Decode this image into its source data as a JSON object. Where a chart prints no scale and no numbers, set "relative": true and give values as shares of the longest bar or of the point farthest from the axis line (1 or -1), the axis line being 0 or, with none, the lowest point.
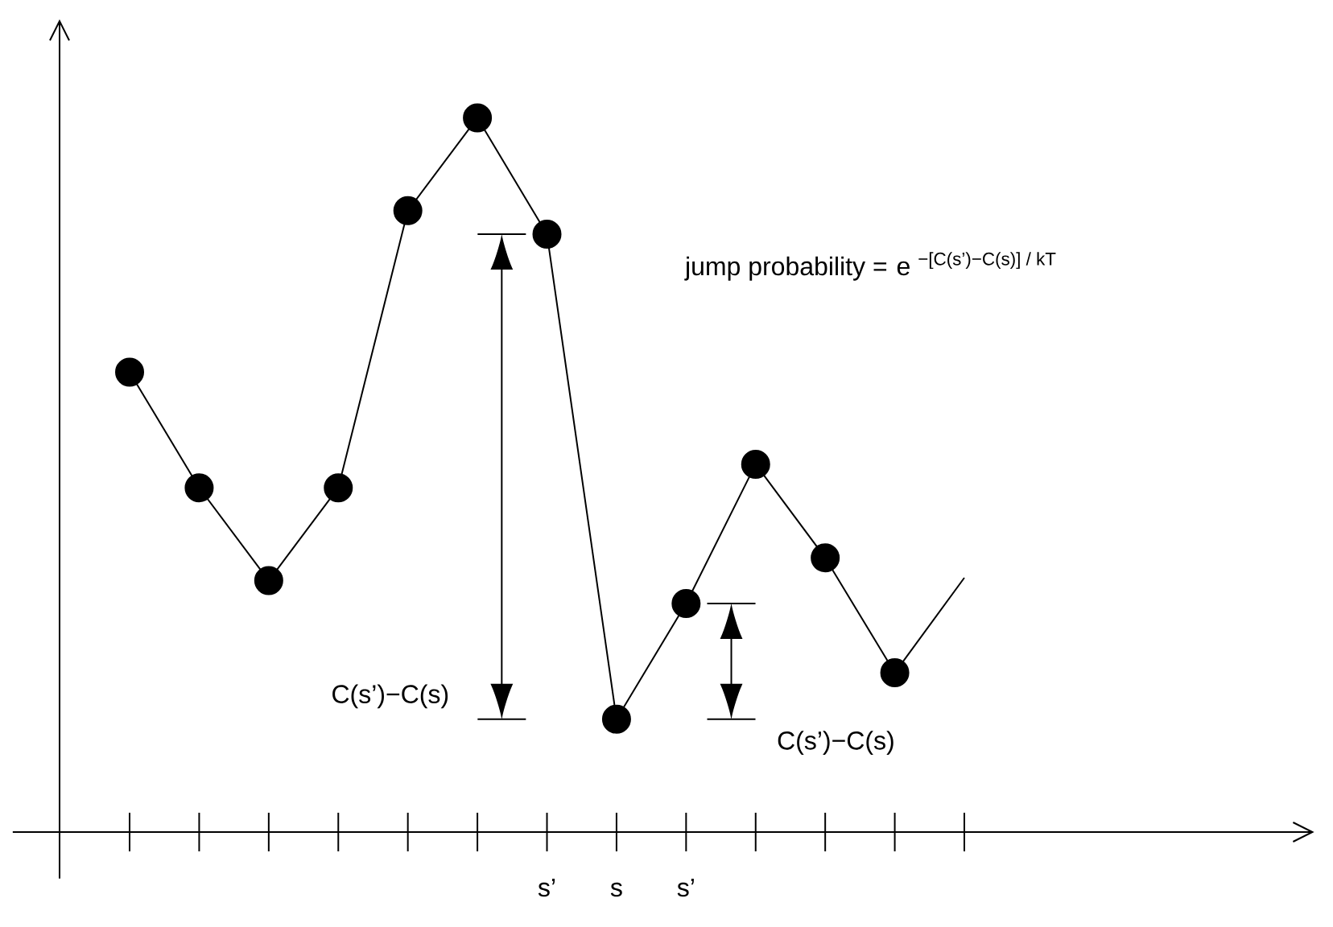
{
  "chart_data": {
    "type": "line",
    "relative": true,
    "categories": [
      null,
      null,
      null,
      null,
      null,
      null,
      "s’",
      "s",
      "s’",
      null,
      null,
      null,
      null
    ],
    "series": [
      {
        "marker": "none",
        "color": "#000000",
        "values": [
          0.644,
          0.482,
          0.352,
          0.482,
          0.87,
          1,
          0.837,
          0.158,
          0.32,
          0.515,
          0.384,
          0.223,
          0.356
        ]
      },
      {
        "type": "scatter",
        "marker": "circle",
        "color": "#000000",
        "values": [
          0.644,
          0.482,
          0.352,
          0.482,
          0.87,
          1,
          0.837,
          0.158,
          0.32,
          0.515,
          0.384,
          0.223,
          null
        ]
      }
    ],
    "annotations": [
      "jump probability =",
      "\\text{e }^{\\text{−[C(s’)−C(s)] / kT}}",
      "C(s’)−C(s)",
      "C(s’)−C(s)"
    ]
  }
}
